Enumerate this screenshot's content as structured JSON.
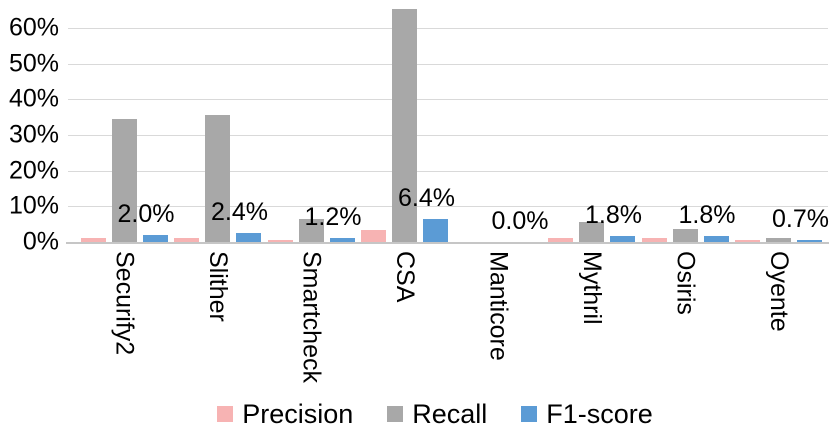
{
  "chart_data": {
    "type": "bar",
    "categories": [
      "Securify2",
      "Slither",
      "Smartcheck",
      "CSA",
      "Manticore",
      "Mythril",
      "Osiris",
      "Oyente"
    ],
    "series": [
      {
        "name": "Precision",
        "color": "#f7b3b3",
        "values": [
          1.0,
          1.2,
          0.7,
          3.4,
          0.0,
          1.0,
          1.2,
          0.5
        ]
      },
      {
        "name": "Recall",
        "color": "#a8a8a8",
        "values": [
          34.5,
          35.7,
          6.5,
          65.3,
          0.0,
          5.6,
          3.6,
          1.2
        ]
      },
      {
        "name": "F1-score",
        "color": "#5b9bd5",
        "values": [
          2.0,
          2.4,
          1.2,
          6.4,
          0.0,
          1.8,
          1.8,
          0.7
        ]
      }
    ],
    "data_labels": {
      "on_series": "F1-score",
      "texts": [
        "2.0%",
        "2.4%",
        "1.2%",
        "6.4%",
        "0.0%",
        "1.8%",
        "1.8%",
        "0.7%"
      ]
    },
    "y_axis": {
      "tick_labels": [
        "0%",
        "10%",
        "20%",
        "30%",
        "40%",
        "50%",
        "60%"
      ],
      "min": 0,
      "max": 67,
      "tick_step": 10,
      "grid": true
    },
    "x_axis": {
      "label_rotation": "vertical"
    },
    "legend": {
      "position": "bottom",
      "entries": [
        "Precision",
        "Recall",
        "F1-score"
      ]
    }
  },
  "style": {
    "grid_color": "#d9d9d9",
    "axis_color": "#c6c6c6",
    "text_color": "#000000",
    "background": "#ffffff"
  }
}
